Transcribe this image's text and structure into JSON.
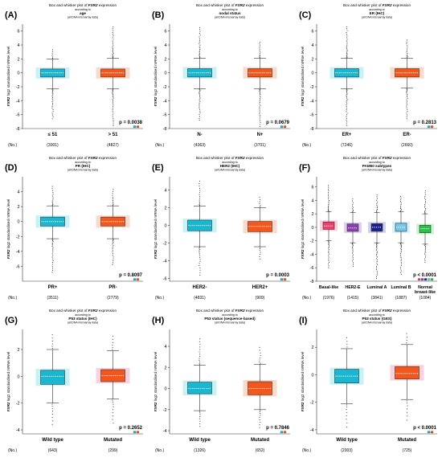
{
  "figure": {
    "ylabel_gene": "FXR2",
    "ylabel_rest": " log2 standardised mRNA level",
    "title_prefix": "Box and whisker plot of ",
    "title_gene": "FXR2",
    "title_suffix": " expression",
    "according": "according to",
    "subtitle2": "(all DNA microarray data)",
    "nc_label": "(No.)"
  },
  "colors": {
    "teal": "#1bb6cf",
    "teal_halo": "#bdf0f5",
    "orange": "#f4571d",
    "orange_halo": "#fcd4c2",
    "pink": "#ef3d6f",
    "pink_halo": "#f9c9d7",
    "purple": "#8a3fb1",
    "purple_halo": "#ddc6ea",
    "navy": "#1c1f8c",
    "navy_halo": "#c8c9ea",
    "skyblue": "#74c6ea",
    "skyblue_halo": "#d3eef9",
    "green": "#26c443",
    "green_halo": "#c8f0cf",
    "axis": "#333333"
  },
  "chart_data": [
    {
      "panel": "(A)",
      "type": "box",
      "subtitle": "age",
      "categories": [
        "≤ 51",
        "> 51"
      ],
      "counts": [
        "(3001)",
        "(4827)"
      ],
      "p_value": "p = 0.0038",
      "ylim": [
        -8,
        7
      ],
      "yticks": [
        -8,
        -6,
        -4,
        -2,
        0,
        2,
        4,
        6
      ],
      "boxes": [
        {
          "q1": -0.6,
          "median": 0.0,
          "q3": 0.55,
          "wlo": -2.3,
          "whi": 2.0,
          "omin": -6.6,
          "omax": 3.3,
          "color": "teal",
          "halo": "teal_halo"
        },
        {
          "q1": -0.6,
          "median": 0.0,
          "q3": 0.55,
          "wlo": -2.3,
          "whi": 2.1,
          "omin": -7.6,
          "omax": 6.6,
          "color": "orange",
          "halo": "orange_halo"
        }
      ]
    },
    {
      "panel": "(B)",
      "type": "box",
      "subtitle": "nodal status",
      "categories": [
        "N-",
        "N+"
      ],
      "counts": [
        "(4363)",
        "(3701)"
      ],
      "p_value": "p = 0.0679",
      "ylim": [
        -8,
        7
      ],
      "yticks": [
        -8,
        -6,
        -4,
        -2,
        0,
        2,
        4,
        6
      ],
      "boxes": [
        {
          "q1": -0.6,
          "median": 0.0,
          "q3": 0.6,
          "wlo": -2.3,
          "whi": 2.1,
          "omin": -6.8,
          "omax": 6.5,
          "color": "teal",
          "halo": "teal_halo"
        },
        {
          "q1": -0.6,
          "median": 0.0,
          "q3": 0.6,
          "wlo": -2.3,
          "whi": 2.1,
          "omin": -7.7,
          "omax": 4.4,
          "color": "orange",
          "halo": "orange_halo"
        }
      ]
    },
    {
      "panel": "(C)",
      "type": "box",
      "subtitle": "ER (IHC)",
      "categories": [
        "ER+",
        "ER-"
      ],
      "counts": [
        "(7246)",
        "(2660)"
      ],
      "p_value": "p = 0.2813",
      "ylim": [
        -8,
        7
      ],
      "yticks": [
        -8,
        -6,
        -4,
        -2,
        0,
        2,
        4,
        6
      ],
      "boxes": [
        {
          "q1": -0.6,
          "median": 0.0,
          "q3": 0.6,
          "wlo": -2.3,
          "whi": 2.1,
          "omin": -7.6,
          "omax": 6.6,
          "color": "teal",
          "halo": "teal_halo"
        },
        {
          "q1": -0.6,
          "median": 0.0,
          "q3": 0.6,
          "wlo": -2.2,
          "whi": 2.1,
          "omin": -6.6,
          "omax": 4.7,
          "color": "orange",
          "halo": "orange_halo"
        }
      ]
    },
    {
      "panel": "(D)",
      "type": "box",
      "subtitle": "PR (IHC)",
      "categories": [
        "PR+",
        "PR-"
      ],
      "counts": [
        "(3511)",
        "(2779)"
      ],
      "p_value": "p = 0.8097",
      "ylim": [
        -8,
        6
      ],
      "yticks": [
        -6,
        -4,
        -2,
        0,
        2,
        4
      ],
      "boxes": [
        {
          "q1": -0.6,
          "median": 0.0,
          "q3": 0.6,
          "wlo": -2.3,
          "whi": 2.1,
          "omin": -6.8,
          "omax": 4.7,
          "color": "teal",
          "halo": "teal_halo"
        },
        {
          "q1": -0.6,
          "median": 0.0,
          "q3": 0.6,
          "wlo": -2.3,
          "whi": 2.1,
          "omin": -5.8,
          "omax": 4.3,
          "color": "orange",
          "halo": "orange_halo"
        }
      ]
    },
    {
      "panel": "(E)",
      "type": "box",
      "subtitle": "HER2 (IHC)",
      "categories": [
        "HER2-",
        "HER2+"
      ],
      "counts": [
        "(4831)",
        "(909)"
      ],
      "p_value": "p = 0.0003",
      "ylim": [
        -6.3,
        5.5
      ],
      "yticks": [
        -6,
        -4,
        -2,
        0,
        2,
        4
      ],
      "boxes": [
        {
          "q1": -0.6,
          "median": 0.0,
          "q3": 0.6,
          "wlo": -2.4,
          "whi": 2.2,
          "omin": -5.6,
          "omax": 5.0,
          "color": "teal",
          "halo": "teal_halo"
        },
        {
          "q1": -0.7,
          "median": -0.1,
          "q3": 0.45,
          "wlo": -2.4,
          "whi": 2.0,
          "omin": -3.8,
          "omax": 3.2,
          "color": "orange",
          "halo": "orange_halo"
        }
      ]
    },
    {
      "panel": "(F)",
      "type": "box",
      "subtitle": "PAM50 subtypes",
      "categories": [
        "Basal-like",
        "HER2-E",
        "Luminal A",
        "Luminal B",
        "Normal breast-like"
      ],
      "counts": [
        "(1976)",
        "(1415)",
        "(3841)",
        "(1887)",
        "(1084)"
      ],
      "p_value": "p < 0.0001",
      "ylim": [
        -8,
        7.5
      ],
      "yticks": [
        -8,
        -6,
        -4,
        -2,
        0,
        2,
        4,
        6
      ],
      "boxes": [
        {
          "q1": -0.3,
          "median": 0.2,
          "q3": 0.8,
          "wlo": -2.0,
          "whi": 2.3,
          "omin": -6.0,
          "omax": 6.2,
          "color": "pink",
          "halo": "pink_halo"
        },
        {
          "q1": -0.6,
          "median": -0.1,
          "q3": 0.5,
          "wlo": -2.3,
          "whi": 2.2,
          "omin": -5.8,
          "omax": 4.2,
          "color": "purple",
          "halo": "purple_halo"
        },
        {
          "q1": -0.6,
          "median": 0.0,
          "q3": 0.55,
          "wlo": -2.3,
          "whi": 2.2,
          "omin": -7.6,
          "omax": 4.8,
          "color": "navy",
          "halo": "navy_halo"
        },
        {
          "q1": -0.6,
          "median": 0.0,
          "q3": 0.6,
          "wlo": -2.3,
          "whi": 2.3,
          "omin": -7.0,
          "omax": 4.6,
          "color": "skyblue",
          "halo": "skyblue_halo"
        },
        {
          "q1": -0.8,
          "median": -0.2,
          "q3": 0.3,
          "wlo": -2.5,
          "whi": 2.0,
          "omin": -5.2,
          "omax": 5.4,
          "color": "green",
          "halo": "green_halo"
        }
      ]
    },
    {
      "panel": "(G)",
      "type": "box",
      "subtitle": "P53 status (IHC)",
      "categories": [
        "Wild type",
        "Mutated"
      ],
      "counts": [
        "(643)",
        "(299)"
      ],
      "p_value": "p = 0.2652",
      "ylim": [
        -4.3,
        3.5
      ],
      "yticks": [
        -4,
        -2,
        0,
        2
      ],
      "boxes": [
        {
          "q1": -0.6,
          "median": 0.0,
          "q3": 0.45,
          "wlo": -2.0,
          "whi": 2.0,
          "omin": -3.6,
          "omax": 3.1,
          "color": "teal",
          "halo": "teal_halo"
        },
        {
          "q1": -0.4,
          "median": 0.05,
          "q3": 0.5,
          "wlo": -1.7,
          "whi": 1.9,
          "omin": -3.5,
          "omax": 3.0,
          "color": "orange",
          "halo": "pink_halo"
        }
      ]
    },
    {
      "panel": "(H)",
      "type": "box",
      "subtitle": "P53 status (sequence-based)",
      "categories": [
        "Wild type",
        "Mutated"
      ],
      "counts": [
        "(1326)",
        "(652)"
      ],
      "p_value": "p = 0.7846",
      "ylim": [
        -4.3,
        5.6
      ],
      "yticks": [
        -4,
        -2,
        0,
        2,
        4
      ],
      "boxes": [
        {
          "q1": -0.5,
          "median": 0.0,
          "q3": 0.6,
          "wlo": -2.1,
          "whi": 2.2,
          "omin": -3.6,
          "omax": 4.7,
          "color": "teal",
          "halo": "teal_halo"
        },
        {
          "q1": -0.6,
          "median": 0.0,
          "q3": 0.65,
          "wlo": -2.0,
          "whi": 2.3,
          "omin": -3.7,
          "omax": 3.9,
          "color": "orange",
          "halo": "orange_halo"
        }
      ]
    },
    {
      "panel": "(I)",
      "type": "box",
      "subtitle": "P53 status (GES)",
      "categories": [
        "Wild type",
        "Mutated"
      ],
      "counts": [
        "(2003)",
        "(725)"
      ],
      "p_value": "p < 0.0001",
      "ylim": [
        -4.3,
        3.3
      ],
      "yticks": [
        -4,
        -2,
        0,
        2
      ],
      "boxes": [
        {
          "q1": -0.6,
          "median": -0.1,
          "q3": 0.4,
          "wlo": -2.1,
          "whi": 1.9,
          "omin": -3.8,
          "omax": 2.7,
          "color": "teal",
          "halo": "teal_halo"
        },
        {
          "q1": -0.3,
          "median": 0.1,
          "q3": 0.6,
          "wlo": -1.8,
          "whi": 2.2,
          "omin": -3.3,
          "omax": 3.0,
          "color": "orange",
          "halo": "pink_halo"
        }
      ]
    }
  ]
}
